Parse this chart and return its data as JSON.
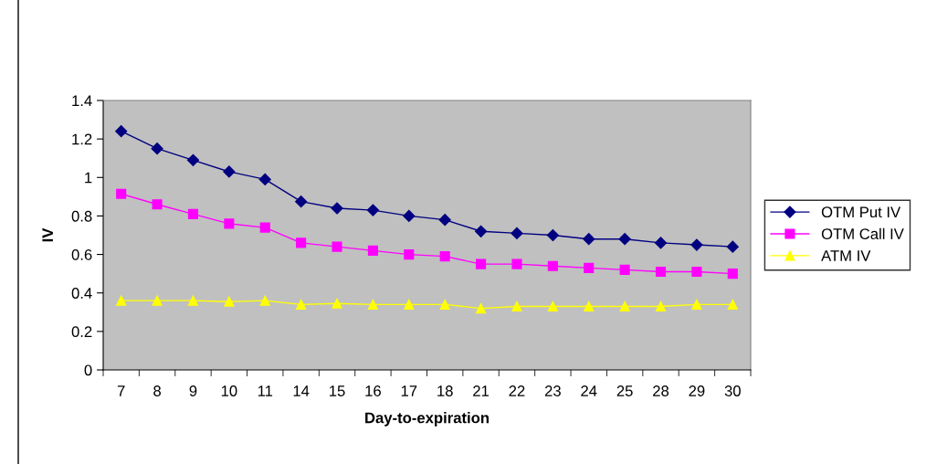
{
  "chart_data": {
    "type": "line",
    "xlabel": "Day-to-expiration",
    "ylabel": "IV",
    "categories": [
      "7",
      "8",
      "9",
      "10",
      "11",
      "14",
      "15",
      "16",
      "17",
      "18",
      "21",
      "22",
      "23",
      "24",
      "25",
      "28",
      "29",
      "30"
    ],
    "series": [
      {
        "name": "OTM Put IV",
        "color": "#000080",
        "marker": "diamond",
        "values": [
          1.24,
          1.15,
          1.09,
          1.03,
          0.99,
          0.875,
          0.84,
          0.83,
          0.8,
          0.78,
          0.72,
          0.71,
          0.7,
          0.68,
          0.68,
          0.66,
          0.65,
          0.64
        ]
      },
      {
        "name": "OTM Call IV",
        "color": "#ff00ff",
        "marker": "square",
        "values": [
          0.915,
          0.86,
          0.81,
          0.76,
          0.74,
          0.66,
          0.64,
          0.62,
          0.6,
          0.59,
          0.55,
          0.55,
          0.54,
          0.53,
          0.52,
          0.51,
          0.51,
          0.5
        ]
      },
      {
        "name": "ATM IV",
        "color": "#ffff00",
        "marker": "triangle",
        "values": [
          0.36,
          0.36,
          0.36,
          0.355,
          0.36,
          0.34,
          0.345,
          0.34,
          0.34,
          0.34,
          0.32,
          0.33,
          0.33,
          0.33,
          0.33,
          0.33,
          0.34,
          0.34
        ]
      }
    ],
    "ylim": [
      0,
      1.4
    ],
    "yticks": [
      0,
      0.2,
      0.4,
      0.6,
      0.8,
      1,
      1.2,
      1.4
    ],
    "grid": false,
    "legend": "right",
    "line_style": "solid"
  }
}
